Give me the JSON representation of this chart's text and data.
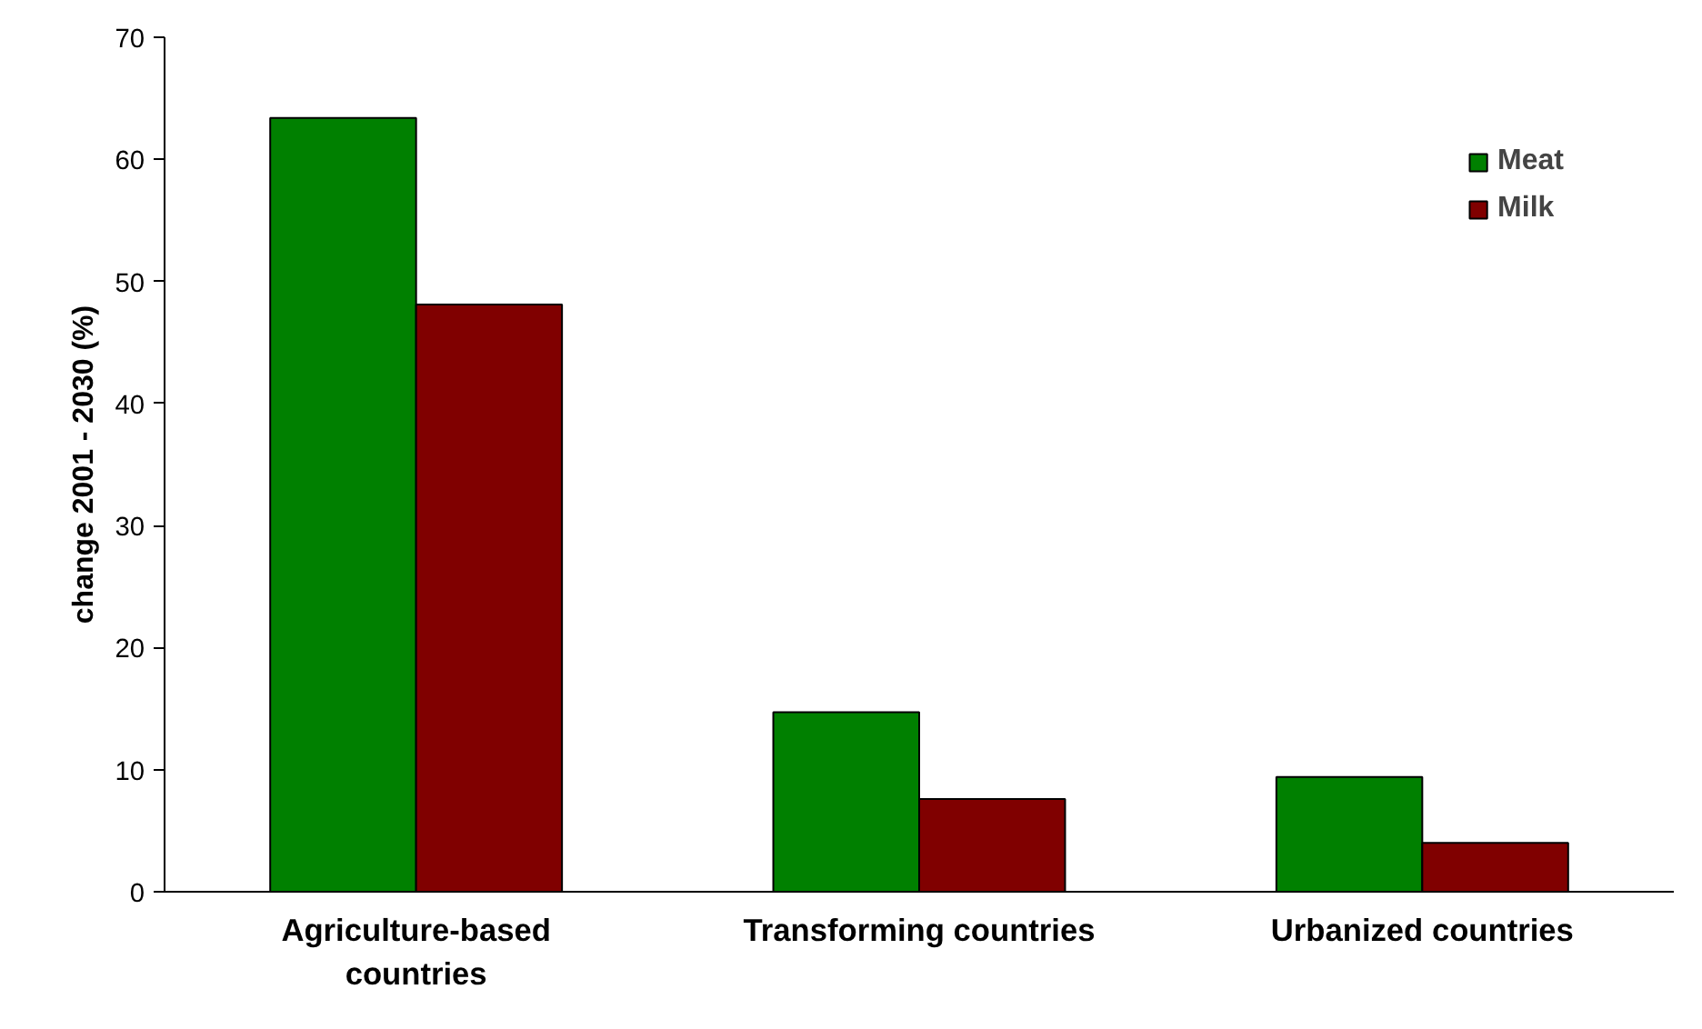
{
  "chart_data": {
    "type": "bar",
    "ylabel": "change 2001 - 2030 (%)",
    "categories": [
      "Agriculture-based countries",
      "Transforming countries",
      "Urbanized countries"
    ],
    "series": [
      {
        "name": "Meat",
        "color": "#008000",
        "values": [
          63.4,
          14.7,
          9.4
        ]
      },
      {
        "name": "Milk",
        "color": "#800000",
        "values": [
          48.1,
          7.6,
          4.0
        ]
      }
    ],
    "ylim": [
      0,
      70
    ],
    "yticks": [
      0,
      10,
      20,
      30,
      40,
      50,
      60,
      70
    ],
    "grid": false,
    "legend": "top right"
  }
}
